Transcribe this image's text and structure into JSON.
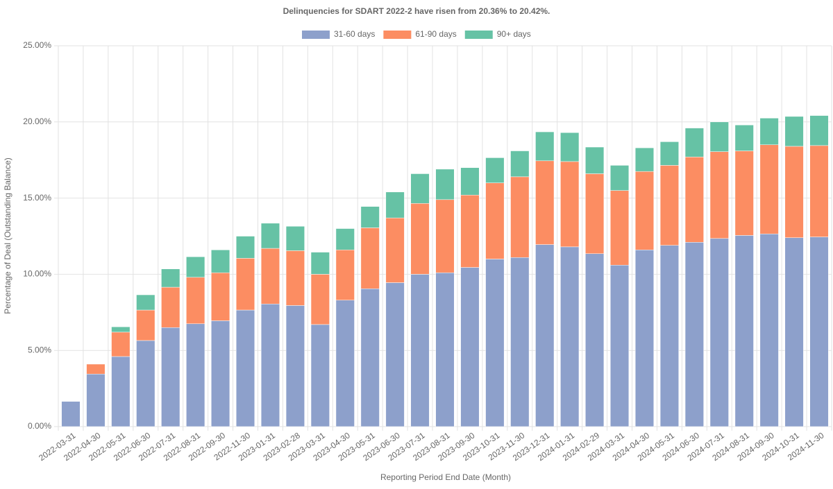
{
  "chart_data": {
    "type": "stacked_bar",
    "title": "Delinquencies for SDART 2022-2 have risen from 20.36% to 20.42%.",
    "x_label": "Reporting Period End Date (Month)",
    "y_label": "Percentage of Deal (Outstanding Balance)",
    "categories": [
      "2022-03-31",
      "2022-04-30",
      "2022-05-31",
      "2022-06-30",
      "2022-07-31",
      "2022-08-31",
      "2022-09-30",
      "2022-11-30",
      "2023-01-31",
      "2023-02-28",
      "2023-03-31",
      "2023-04-30",
      "2023-05-31",
      "2023-06-30",
      "2023-07-31",
      "2023-08-31",
      "2023-09-30",
      "2023-10-31",
      "2023-11-30",
      "2023-12-31",
      "2024-01-31",
      "2024-02-29",
      "2024-03-31",
      "2024-04-30",
      "2024-05-31",
      "2024-06-30",
      "2024-07-31",
      "2024-08-31",
      "2024-09-30",
      "2024-10-31",
      "2024-11-30"
    ],
    "series": [
      {
        "name": "31-60 days",
        "color": "#8da0cb",
        "values": [
          1.65,
          3.45,
          4.6,
          5.65,
          6.5,
          6.75,
          6.95,
          7.65,
          8.05,
          7.95,
          6.7,
          8.3,
          9.05,
          9.45,
          10.0,
          10.1,
          10.45,
          11.0,
          11.1,
          11.95,
          11.8,
          11.35,
          10.6,
          11.6,
          11.9,
          12.1,
          12.35,
          12.55,
          12.65,
          12.4,
          12.45
        ]
      },
      {
        "name": "61-90 days",
        "color": "#fc8d62",
        "values": [
          0,
          0.65,
          1.6,
          2.0,
          2.65,
          3.05,
          3.15,
          3.4,
          3.65,
          3.6,
          3.3,
          3.3,
          4.0,
          4.25,
          4.65,
          4.8,
          4.75,
          5.0,
          5.3,
          5.5,
          5.6,
          5.25,
          4.9,
          5.15,
          5.25,
          5.6,
          5.7,
          5.55,
          5.85,
          6.0,
          6.0
        ]
      },
      {
        "name": "90+ days",
        "color": "#66c2a5",
        "values": [
          0,
          0,
          0.35,
          1.0,
          1.2,
          1.35,
          1.5,
          1.45,
          1.65,
          1.6,
          1.45,
          1.4,
          1.4,
          1.7,
          1.95,
          2.0,
          1.8,
          1.65,
          1.7,
          1.9,
          1.9,
          1.75,
          1.65,
          1.55,
          1.55,
          1.9,
          1.95,
          1.7,
          1.75,
          1.96,
          1.97
        ]
      }
    ],
    "ylim": [
      0,
      25
    ],
    "yticks": [
      {
        "value": 0,
        "label": "0.00%"
      },
      {
        "value": 5,
        "label": "5.00%"
      },
      {
        "value": 10,
        "label": "10.00%"
      },
      {
        "value": 15,
        "label": "15.00%"
      },
      {
        "value": 20,
        "label": "20.00%"
      },
      {
        "value": 25,
        "label": "25.00%"
      }
    ],
    "grid": true,
    "legend": "top"
  }
}
